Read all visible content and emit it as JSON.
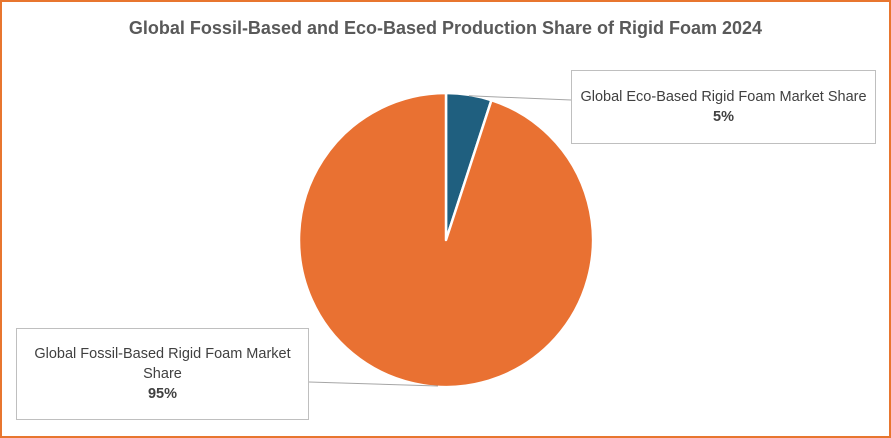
{
  "chart_data": {
    "type": "pie",
    "title": "Global Fossil-Based and Eco-Based Production Share of Rigid Foam 2024",
    "slices": [
      {
        "label": "Global Eco-Based Rigid Foam Market Share",
        "value": 5,
        "value_label": "5%",
        "color": "#1f5f7f"
      },
      {
        "label": "Global Fossil-Based Rigid Foam Market Share",
        "value": 95,
        "value_label": "95%",
        "color": "#e97132"
      }
    ],
    "start_angle_deg": 0,
    "direction": "clockwise",
    "data_labels": "callouts with leader lines"
  },
  "colors": {
    "frame_border": "#e8762f",
    "leader_line": "#a6a6a6",
    "label_text": "#404040",
    "title_text": "#595959"
  }
}
